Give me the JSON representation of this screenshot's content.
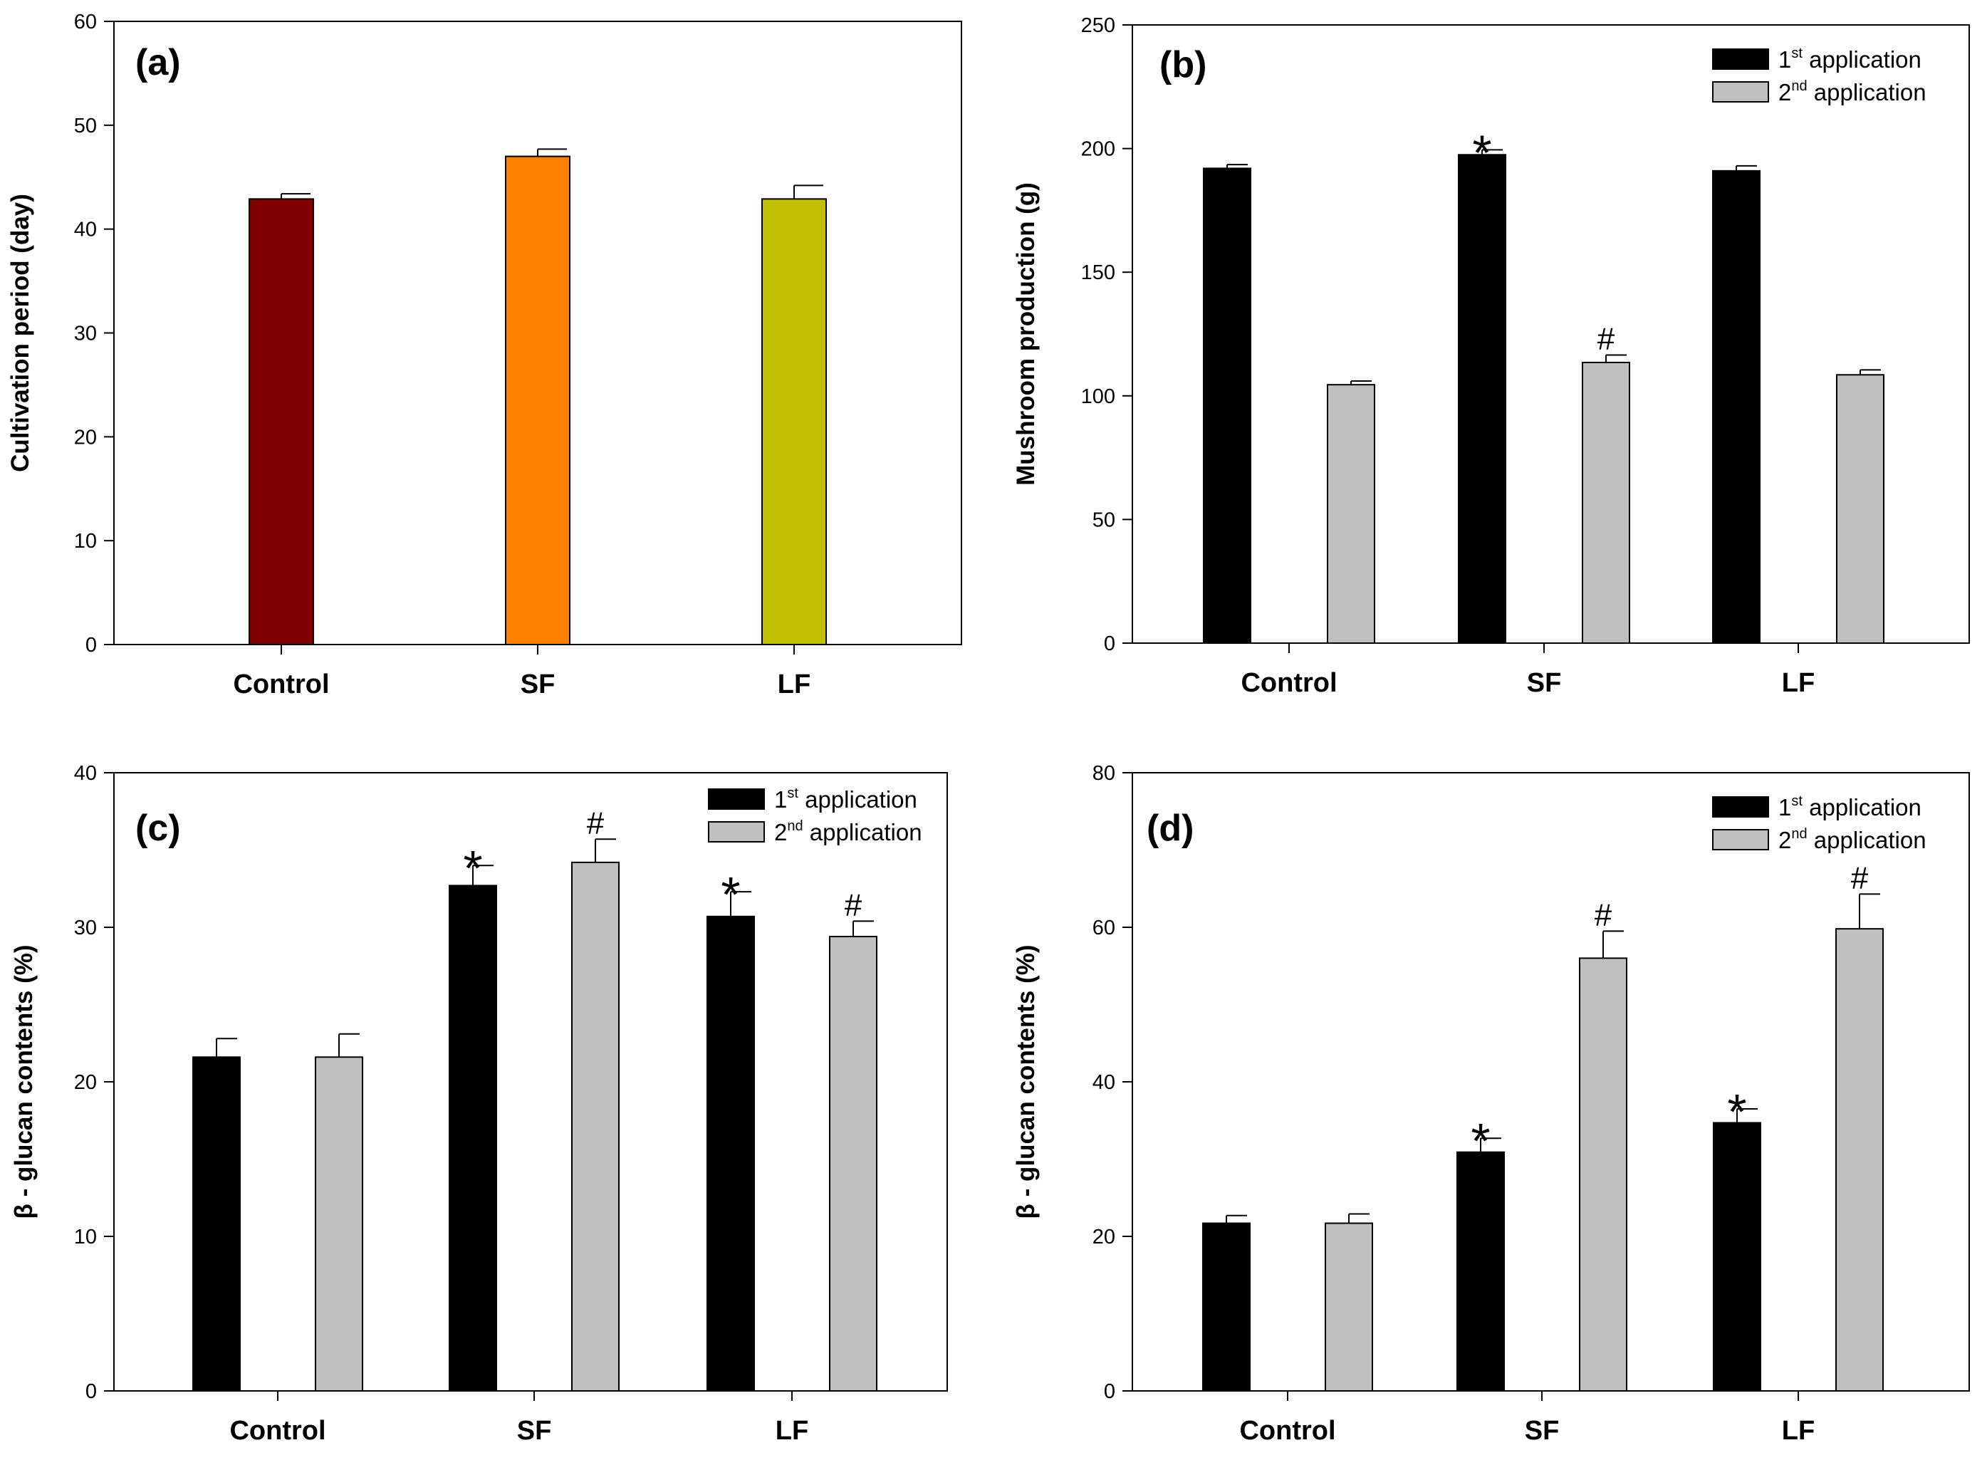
{
  "chart_data": [
    {
      "panel": "(a)",
      "type": "bar",
      "ylabel": "Cultivation period (day)",
      "xlabel": "",
      "ylim": [
        0,
        60
      ],
      "yticks": [
        0,
        10,
        20,
        30,
        40,
        50,
        60
      ],
      "categories": [
        "Control",
        "SF",
        "LF"
      ],
      "series": [
        {
          "name": "",
          "values": [
            42.9,
            47.0,
            42.9
          ],
          "errors": [
            0.5,
            0.7,
            1.3
          ],
          "colors": [
            "#800000",
            "#ff8000",
            "#c0c000"
          ],
          "markers": [
            "",
            "",
            ""
          ]
        }
      ],
      "legend": []
    },
    {
      "panel": "(b)",
      "type": "bar",
      "ylabel": "Mushroom production (g)",
      "xlabel": "",
      "ylim": [
        0,
        250
      ],
      "yticks": [
        0,
        50,
        100,
        150,
        200,
        250
      ],
      "categories": [
        "Control",
        "SF",
        "LF"
      ],
      "legend_position": "top-right",
      "series": [
        {
          "name": "1st application",
          "name_base": "1",
          "name_sup": "st",
          "name_rest": " application",
          "color": "#000000",
          "values": [
            192,
            197.5,
            191
          ],
          "errors": [
            1.5,
            2,
            2
          ],
          "markers": [
            "",
            "*",
            ""
          ]
        },
        {
          "name": "2nd application",
          "name_base": "2",
          "name_sup": "nd",
          "name_rest": " application",
          "color": "#c0c0c0",
          "values": [
            104.5,
            113.5,
            108.5
          ],
          "errors": [
            1.5,
            3,
            2
          ],
          "markers": [
            "",
            "#",
            ""
          ]
        }
      ]
    },
    {
      "panel": "(c)",
      "type": "bar",
      "ylabel": "β - glucan contents (%)",
      "xlabel": "",
      "ylim": [
        0,
        40
      ],
      "yticks": [
        0,
        10,
        20,
        30,
        40
      ],
      "categories": [
        "Control",
        "SF",
        "LF"
      ],
      "legend_position": "top-right",
      "series": [
        {
          "name": "1st application",
          "name_base": "1",
          "name_sup": "st",
          "name_rest": " application",
          "color": "#000000",
          "values": [
            21.6,
            32.7,
            30.7
          ],
          "errors": [
            1.2,
            1.3,
            1.6
          ],
          "markers": [
            "",
            "*",
            "*"
          ]
        },
        {
          "name": "2nd application",
          "name_base": "2",
          "name_sup": "nd",
          "name_rest": " application",
          "color": "#c0c0c0",
          "values": [
            21.6,
            34.2,
            29.4
          ],
          "errors": [
            1.5,
            1.5,
            1.0
          ],
          "markers": [
            "",
            "#",
            "#"
          ]
        }
      ]
    },
    {
      "panel": "(d)",
      "type": "bar",
      "ylabel": "β - glucan contents (%)",
      "xlabel": "",
      "ylim": [
        0,
        80
      ],
      "yticks": [
        0,
        20,
        40,
        60,
        80
      ],
      "categories": [
        "Control",
        "SF",
        "LF"
      ],
      "legend_position": "top-right",
      "series": [
        {
          "name": "1st application",
          "name_base": "1",
          "name_sup": "st",
          "name_rest": " application",
          "color": "#000000",
          "values": [
            21.7,
            30.9,
            34.7
          ],
          "errors": [
            1.0,
            1.8,
            1.8
          ],
          "markers": [
            "",
            "*",
            "*"
          ]
        },
        {
          "name": "2nd application",
          "name_base": "2",
          "name_sup": "nd",
          "name_rest": " application",
          "color": "#c0c0c0",
          "values": [
            21.7,
            56.0,
            59.8
          ],
          "errors": [
            1.2,
            3.5,
            4.5
          ],
          "markers": [
            "",
            "#",
            "#"
          ]
        }
      ]
    }
  ]
}
